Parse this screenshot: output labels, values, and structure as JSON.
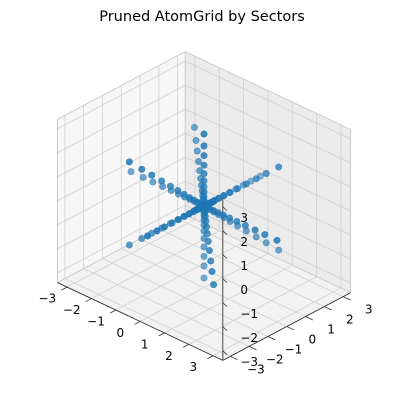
{
  "chart_data": {
    "type": "scatter3d",
    "title": "Pruned AtomGrid by Sectors",
    "xlabel": "",
    "ylabel": "",
    "zlabel": "",
    "xlim": [
      -3.4,
      3.4
    ],
    "ylim": [
      -3.4,
      3.4
    ],
    "zlim": [
      -3.4,
      3.4
    ],
    "xticks": [
      -3,
      -2,
      -1,
      0,
      1,
      2,
      3
    ],
    "yticks": [
      -3,
      -2,
      -1,
      0,
      1,
      2,
      3
    ],
    "zticks": [
      -3,
      -2,
      -1,
      0,
      1,
      2,
      3
    ],
    "grid": true,
    "marker_color": "#1f77b4",
    "radial_shells": [
      0.12,
      0.25,
      0.4,
      0.58,
      0.8,
      1.05,
      1.35,
      1.7,
      2.1,
      2.5,
      3.0
    ],
    "series": [
      {
        "direction": [
          1,
          0,
          0
        ],
        "points": 11
      },
      {
        "direction": [
          -1,
          0,
          0
        ],
        "points": 11
      },
      {
        "direction": [
          0,
          1,
          0
        ],
        "points": 11
      },
      {
        "direction": [
          0,
          -1,
          0
        ],
        "points": 11
      },
      {
        "direction": [
          0,
          0,
          1
        ],
        "points": 11
      },
      {
        "direction": [
          0,
          0,
          -1
        ],
        "points": 11
      },
      {
        "direction": [
          0.577,
          0.577,
          0.577
        ],
        "points": 11
      },
      {
        "direction": [
          -0.577,
          -0.577,
          -0.577
        ],
        "points": 11
      },
      {
        "direction": [
          0.577,
          -0.577,
          0.577
        ],
        "points": 11
      },
      {
        "direction": [
          -0.577,
          0.577,
          -0.577
        ],
        "points": 11
      },
      {
        "direction": [
          -0.577,
          0.577,
          0.577
        ],
        "points": 11
      },
      {
        "direction": [
          0.577,
          -0.577,
          -0.577
        ],
        "points": 11
      },
      {
        "direction": [
          -0.577,
          -0.577,
          0.577
        ],
        "points": 11
      },
      {
        "direction": [
          0.577,
          0.577,
          -0.577
        ],
        "points": 11
      }
    ]
  }
}
